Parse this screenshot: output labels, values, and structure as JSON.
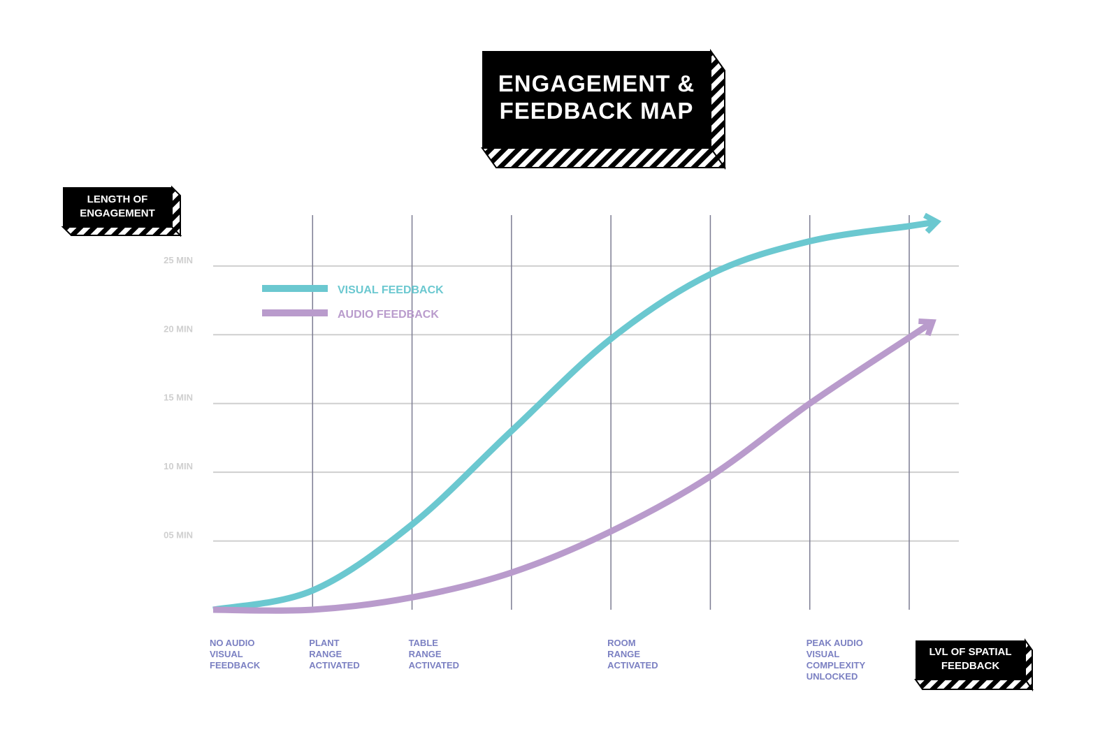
{
  "chart_data": {
    "type": "line",
    "title": "ENGAGEMENT &\nFEEDBACK MAP",
    "y_label": "LENGTH OF\nENGAGEMENT",
    "x_label": "LVL OF SPATIAL\nFEEDBACK",
    "categories": [
      "NO AUDIO\nVISUAL\nFEEDBACK",
      "PLANT\nRANGE\nACTIVATED",
      "TABLE\nRANGE\nACTIVATED",
      null,
      "ROOM\nRANGE\nACTIVATED",
      null,
      "PEAK AUDIO\nVISUAL\nCOMPLEXITY\nUNLOCKED",
      null
    ],
    "series": [
      {
        "name": "VISUAL FEEDBACK",
        "color": "#6bc8d0",
        "values": [
          0,
          1.4,
          6.2,
          13.0,
          19.7,
          24.4,
          26.8,
          27.9
        ]
      },
      {
        "name": "AUDIO FEEDBACK",
        "color": "#b99bcc",
        "values": [
          0,
          0,
          0.9,
          2.7,
          5.7,
          9.7,
          15.0,
          19.8
        ]
      }
    ],
    "ylim": [
      0,
      28.7
    ],
    "yticks": [
      {
        "value": 5,
        "label": "05 MIN"
      },
      {
        "value": 10,
        "label": "10 MIN"
      },
      {
        "value": 15,
        "label": "15 MIN"
      },
      {
        "value": 20,
        "label": "20 MIN"
      },
      {
        "value": 25,
        "label": "25 MIN"
      }
    ],
    "grid": true
  }
}
